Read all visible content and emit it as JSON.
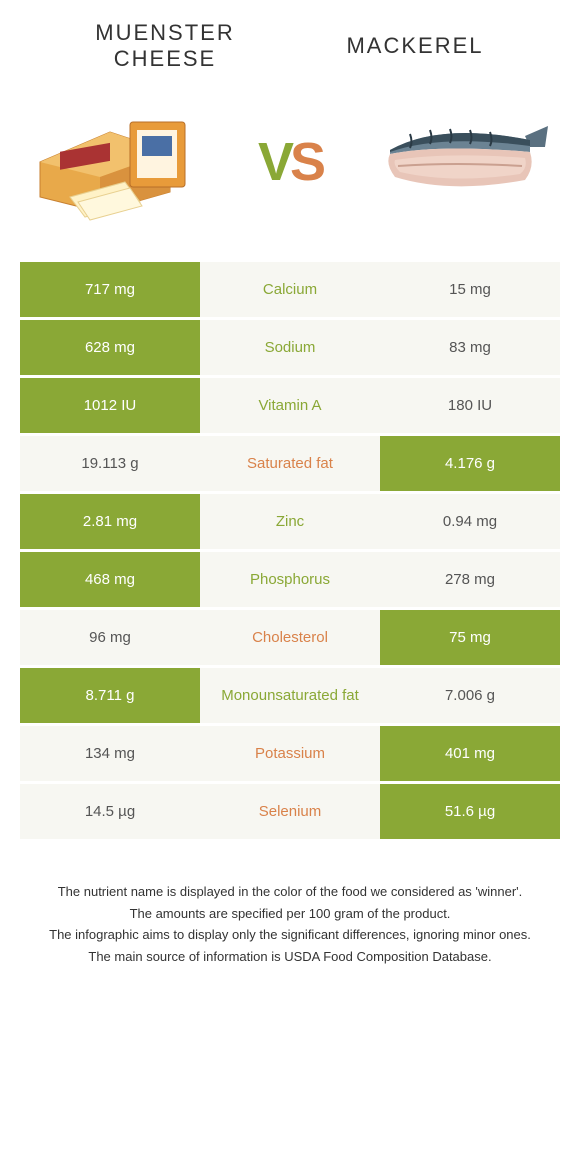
{
  "header": {
    "left_title": "Muenster cheese",
    "right_title": "Mackerel"
  },
  "vs": {
    "v": "V",
    "s": "S"
  },
  "colors": {
    "green": "#8aa836",
    "orange": "#d9824a",
    "light": "#f7f7f2"
  },
  "rows": [
    {
      "left": "717 mg",
      "label": "Calcium",
      "right": "15 mg",
      "winner": "left"
    },
    {
      "left": "628 mg",
      "label": "Sodium",
      "right": "83 mg",
      "winner": "left"
    },
    {
      "left": "1012 IU",
      "label": "Vitamin A",
      "right": "180 IU",
      "winner": "left"
    },
    {
      "left": "19.113 g",
      "label": "Saturated fat",
      "right": "4.176 g",
      "winner": "right"
    },
    {
      "left": "2.81 mg",
      "label": "Zinc",
      "right": "0.94 mg",
      "winner": "left"
    },
    {
      "left": "468 mg",
      "label": "Phosphorus",
      "right": "278 mg",
      "winner": "left"
    },
    {
      "left": "96 mg",
      "label": "Cholesterol",
      "right": "75 mg",
      "winner": "right"
    },
    {
      "left": "8.711 g",
      "label": "Monounsaturated fat",
      "right": "7.006 g",
      "winner": "left"
    },
    {
      "left": "134 mg",
      "label": "Potassium",
      "right": "401 mg",
      "winner": "right"
    },
    {
      "left": "14.5 µg",
      "label": "Selenium",
      "right": "51.6 µg",
      "winner": "right"
    }
  ],
  "footnotes": [
    "The nutrient name is displayed in the color of the food we considered as 'winner'.",
    "The amounts are specified per 100 gram of the product.",
    "The infographic aims to display only the significant differences, ignoring minor ones.",
    "The main source of information is USDA Food Composition Database."
  ]
}
